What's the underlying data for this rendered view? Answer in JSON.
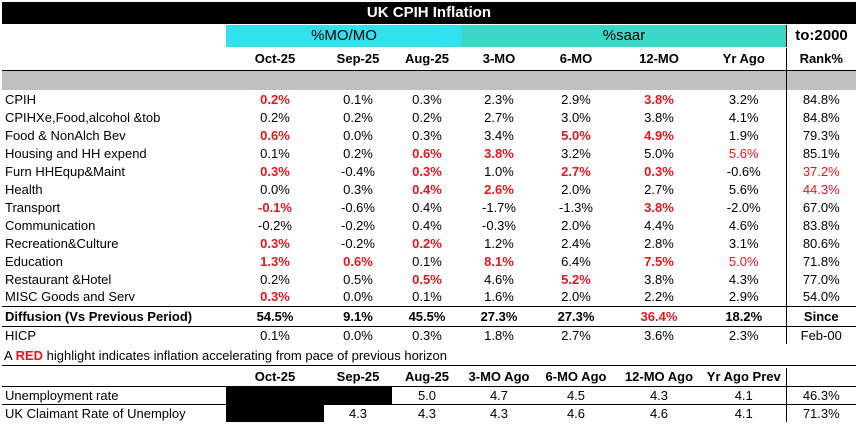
{
  "title": "UK CPIH Inflation",
  "groups": {
    "mom": "%MO/MO",
    "saar": "%saar",
    "to2000": "to:2000"
  },
  "columns": [
    "Oct-25",
    "Sep-25",
    "Aug-25",
    "3-MO",
    "6-MO",
    "12-MO",
    "Yr Ago",
    "Rank%"
  ],
  "rows": [
    {
      "label": "CPIH",
      "v": [
        "0.2%",
        "0.1%",
        "0.3%",
        "2.3%",
        "2.9%",
        "3.8%",
        "3.2%",
        "84.8%"
      ],
      "red": [
        0,
        5
      ]
    },
    {
      "label": " CPIHXe,Food,alcohol &tob",
      "v": [
        "0.2%",
        "0.2%",
        "0.2%",
        "2.7%",
        "3.0%",
        "3.8%",
        "4.1%",
        "84.8%"
      ],
      "red": []
    },
    {
      "label": "Food & NonAlch Bev",
      "v": [
        "0.6%",
        "0.0%",
        "0.3%",
        "3.4%",
        "5.0%",
        "4.9%",
        "1.9%",
        "79.3%"
      ],
      "red": [
        0,
        4,
        5
      ]
    },
    {
      "label": "Housing and HH expend",
      "v": [
        "0.1%",
        "0.2%",
        "0.6%",
        "3.8%",
        "3.2%",
        "5.0%",
        "5.6%",
        "85.1%"
      ],
      "red": [
        2,
        3
      ],
      "pink": [
        6
      ]
    },
    {
      "label": "Furn HHEqup&Maint",
      "v": [
        "0.3%",
        "-0.4%",
        "0.3%",
        "1.0%",
        "2.7%",
        "0.3%",
        "-0.6%",
        "37.2%"
      ],
      "red": [
        0,
        2,
        4,
        5
      ],
      "pink": [
        7
      ]
    },
    {
      "label": "Health",
      "v": [
        "0.0%",
        "0.3%",
        "0.4%",
        "2.6%",
        "2.0%",
        "2.7%",
        "5.6%",
        "44.3%"
      ],
      "red": [
        2,
        3
      ],
      "pink": [
        7
      ]
    },
    {
      "label": "Transport",
      "v": [
        "-0.1%",
        "-0.6%",
        "0.4%",
        "-1.7%",
        "-1.3%",
        "3.8%",
        "-2.0%",
        "67.0%"
      ],
      "red": [
        0,
        5
      ]
    },
    {
      "label": "Communication",
      "v": [
        "-0.2%",
        "-0.2%",
        "0.4%",
        "-0.3%",
        "2.0%",
        "4.4%",
        "4.6%",
        "83.8%"
      ],
      "red": []
    },
    {
      "label": "Recreation&Culture",
      "v": [
        "0.3%",
        "-0.2%",
        "0.2%",
        "1.2%",
        "2.4%",
        "2.8%",
        "3.1%",
        "80.6%"
      ],
      "red": [
        0,
        2
      ]
    },
    {
      "label": "Education",
      "v": [
        "1.3%",
        "0.6%",
        "0.1%",
        "8.1%",
        "6.4%",
        "7.5%",
        "5.0%",
        "71.8%"
      ],
      "red": [
        0,
        1,
        3,
        5
      ],
      "pink": [
        6
      ]
    },
    {
      "label": "Restaurant &Hotel",
      "v": [
        "0.2%",
        "0.5%",
        "0.5%",
        "4.6%",
        "5.2%",
        "3.8%",
        "4.3%",
        "77.0%"
      ],
      "red": [
        2,
        4
      ]
    },
    {
      "label": "MISC Goods and Serv",
      "v": [
        "0.3%",
        "0.0%",
        "0.1%",
        "1.6%",
        "2.0%",
        "2.2%",
        "2.9%",
        "54.0%"
      ],
      "red": [
        0
      ]
    }
  ],
  "diffusion": {
    "label": "Diffusion (Vs Previous Period)",
    "v": [
      "54.5%",
      "9.1%",
      "45.5%",
      "27.3%",
      "27.3%",
      "36.4%",
      "18.2%",
      "Since"
    ],
    "red": [
      5
    ]
  },
  "hicp": {
    "label": "HICP",
    "v": [
      "0.1%",
      "0.0%",
      "0.3%",
      "1.8%",
      "2.7%",
      "3.6%",
      "2.3%",
      "Feb-00"
    ]
  },
  "note": {
    "prefix": "A ",
    "red": "RED",
    "suffix": " highlight indicates inflation accelerating from pace of previous horizon"
  },
  "labor_columns": [
    "Oct-25",
    "Sep-25",
    "Aug-25",
    "3-MO Ago",
    "6-MO Ago",
    "12-MO Ago",
    "Yr Ago Prev"
  ],
  "labor_rows": [
    {
      "label": "Unemployment rate",
      "v": [
        "",
        "",
        "5.0",
        "4.7",
        "4.5",
        "4.3",
        "4.1",
        "46.3%"
      ]
    },
    {
      "label": " UK Claimant Rate of Unemploy",
      "v": [
        "",
        "4.3",
        "4.3",
        "4.3",
        "4.6",
        "4.6",
        "4.1",
        "71.3%"
      ]
    }
  ]
}
